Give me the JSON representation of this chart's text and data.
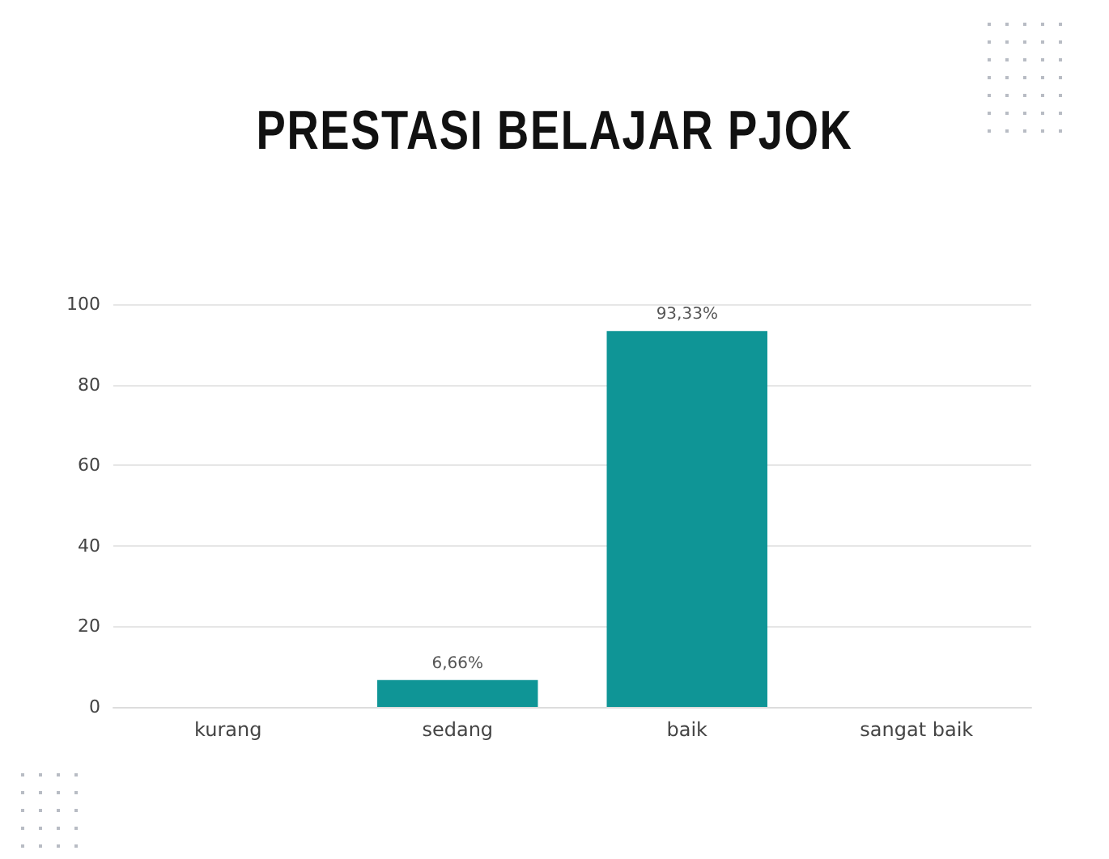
{
  "chart_data": {
    "type": "bar",
    "title": "PRESTASI BELAJAR PJOK",
    "categories": [
      "kurang",
      "sedang",
      "baik",
      "sangat baik"
    ],
    "values": [
      0,
      6.66,
      93.33,
      0
    ],
    "value_labels": [
      null,
      "6,66%",
      "93,33%",
      null
    ],
    "color": "#0f9596",
    "ylim": [
      0,
      100
    ],
    "yticks": [
      0,
      20,
      40,
      60,
      80,
      100
    ],
    "grid": "y"
  }
}
